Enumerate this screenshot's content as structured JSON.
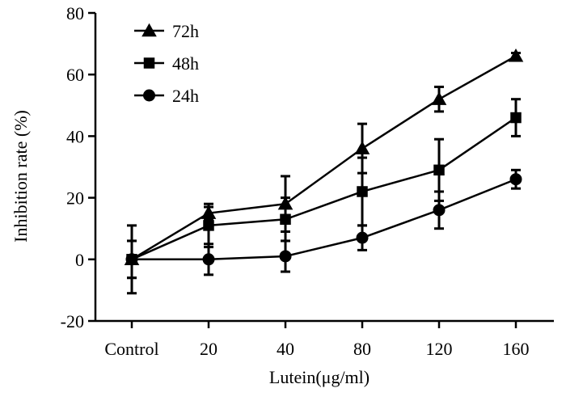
{
  "chart_data": {
    "type": "line",
    "title": "",
    "xlabel": "Lutein(μg/ml)",
    "ylabel": "Inhibition rate (%)",
    "categories": [
      "Control",
      "20",
      "40",
      "80",
      "120",
      "160"
    ],
    "ylim": [
      -20,
      80
    ],
    "yticks": [
      -20,
      0,
      20,
      40,
      60,
      80
    ],
    "ytick_labels": [
      "-20",
      "0",
      "20",
      "40",
      "60",
      "80"
    ],
    "grid": false,
    "legend_position": "top-left",
    "series": [
      {
        "name": "72h",
        "marker": "triangle",
        "values": [
          0,
          15,
          18,
          36,
          52,
          66
        ],
        "errors": [
          6,
          2,
          9,
          8,
          4,
          1
        ]
      },
      {
        "name": "48h",
        "marker": "square",
        "values": [
          0,
          11,
          13,
          22,
          29,
          46
        ],
        "errors": [
          6,
          7,
          7,
          11,
          10,
          6
        ]
      },
      {
        "name": "24h",
        "marker": "circle",
        "values": [
          0,
          0,
          1,
          7,
          16,
          26
        ],
        "errors": [
          11,
          5,
          5,
          4,
          6,
          3
        ]
      }
    ],
    "color": "#000000"
  }
}
